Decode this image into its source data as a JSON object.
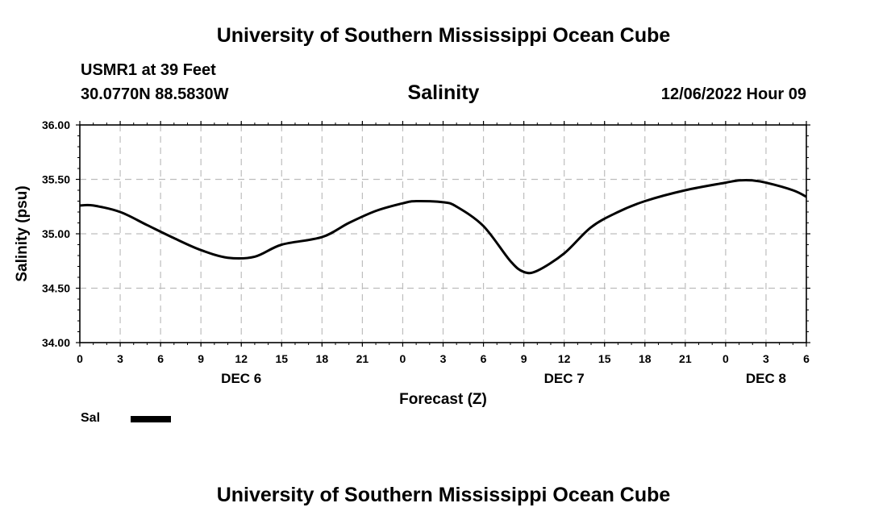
{
  "header": {
    "title": "University of Southern Mississippi Ocean Cube",
    "station": "USMR1 at 39 Feet",
    "coordinates": "30.0770N  88.5830W",
    "parameter": "Salinity",
    "datetime": "12/06/2022 Hour 09"
  },
  "footer": {
    "title": "University of Southern Mississippi Ocean Cube"
  },
  "legend": {
    "label": "Sal",
    "color": "#000000"
  },
  "chart_data": {
    "type": "line",
    "title": "Salinity",
    "xlabel": "Forecast (Z)",
    "ylabel": "Salinity (psu)",
    "ylim": [
      34.0,
      36.0
    ],
    "xlim": [
      0,
      54
    ],
    "yticks": [
      "34.00",
      "34.50",
      "35.00",
      "35.50",
      "36.00"
    ],
    "xticks": [
      "0",
      "3",
      "6",
      "9",
      "12",
      "15",
      "18",
      "21",
      "0",
      "3",
      "6",
      "9",
      "12",
      "15",
      "18",
      "21",
      "0",
      "3",
      "6"
    ],
    "xtick_hours": [
      0,
      3,
      6,
      9,
      12,
      15,
      18,
      21,
      24,
      27,
      30,
      33,
      36,
      39,
      42,
      45,
      48,
      51,
      54
    ],
    "day_labels": [
      {
        "label": "DEC 6",
        "hour": 12
      },
      {
        "label": "DEC 7",
        "hour": 36
      },
      {
        "label": "DEC 8",
        "hour": 51
      }
    ],
    "grid": true,
    "series": [
      {
        "name": "Sal",
        "x": [
          0,
          1,
          3,
          5,
          7,
          9,
          11,
          13,
          15,
          18,
          20,
          22,
          24,
          25,
          27,
          28,
          30,
          32,
          33,
          34,
          36,
          38,
          40,
          42,
          45,
          48,
          49,
          50,
          51,
          53,
          54
        ],
        "values": [
          35.26,
          35.26,
          35.2,
          35.08,
          34.96,
          34.85,
          34.78,
          34.79,
          34.9,
          34.97,
          35.1,
          35.21,
          35.28,
          35.3,
          35.29,
          35.25,
          35.07,
          34.75,
          34.65,
          34.66,
          34.82,
          35.06,
          35.2,
          35.3,
          35.4,
          35.47,
          35.49,
          35.49,
          35.47,
          35.4,
          35.34
        ]
      }
    ]
  }
}
